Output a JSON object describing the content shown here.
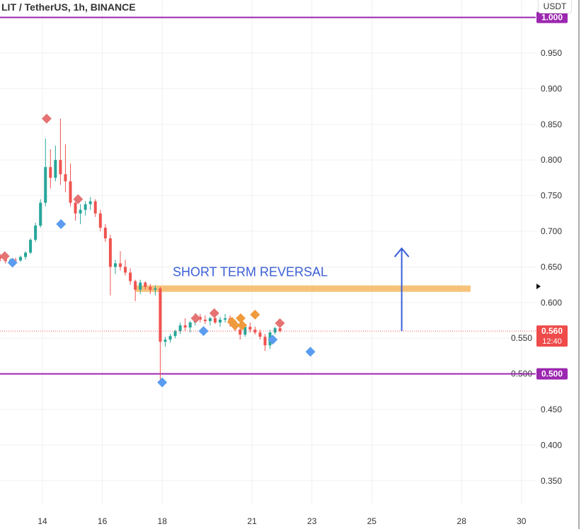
{
  "header": {
    "title": "LIT / TetherUS, 1h, BINANCE",
    "currency": "USDT"
  },
  "chart_data": {
    "type": "candlestick",
    "title": "LIT / TetherUS, 1h, BINANCE",
    "ylim": [
      0.31,
      1.01
    ],
    "xlim": [
      12.58,
      30.9
    ],
    "y_ticks": [
      0.35,
      0.4,
      0.45,
      0.5,
      0.55,
      0.6,
      0.65,
      0.7,
      0.75,
      0.8,
      0.85,
      0.9,
      0.95
    ],
    "y_tick_labels": [
      "0.350",
      "0.400",
      "0.450",
      "0.500",
      "0.550",
      "0.600",
      "0.650",
      "0.700",
      "0.750",
      "0.800",
      "0.850",
      "0.900",
      "0.950"
    ],
    "x_ticks": [
      14,
      16,
      18,
      21,
      23,
      25,
      28,
      30
    ],
    "x_tick_labels": [
      "14",
      "16",
      "18",
      "21",
      "23",
      "25",
      "28",
      "30"
    ],
    "grid": true,
    "candle_start_day": 12.6,
    "candle_step_days": 0.1667,
    "colors": {
      "up": "#26a69a",
      "down": "#ef5350",
      "purple": "#9c27b0",
      "band": "#f6c27a",
      "arrow": "#3a5fd6",
      "sell": "#e57373",
      "buy": "#5b9cf0",
      "orange": "#f09a3e"
    },
    "candles": [
      [
        0.665,
        0.668,
        0.658,
        0.662
      ],
      [
        0.662,
        0.665,
        0.655,
        0.658
      ],
      [
        0.658,
        0.662,
        0.655,
        0.66
      ],
      [
        0.66,
        0.663,
        0.656,
        0.659
      ],
      [
        0.659,
        0.666,
        0.657,
        0.664
      ],
      [
        0.664,
        0.672,
        0.66,
        0.67
      ],
      [
        0.67,
        0.69,
        0.668,
        0.688
      ],
      [
        0.688,
        0.712,
        0.685,
        0.708
      ],
      [
        0.708,
        0.745,
        0.705,
        0.74
      ],
      [
        0.74,
        0.83,
        0.735,
        0.79
      ],
      [
        0.79,
        0.815,
        0.76,
        0.775
      ],
      [
        0.775,
        0.82,
        0.77,
        0.8
      ],
      [
        0.8,
        0.858,
        0.765,
        0.78
      ],
      [
        0.78,
        0.822,
        0.755,
        0.77
      ],
      [
        0.77,
        0.795,
        0.735,
        0.74
      ],
      [
        0.74,
        0.748,
        0.715,
        0.725
      ],
      [
        0.725,
        0.738,
        0.71,
        0.73
      ],
      [
        0.73,
        0.742,
        0.722,
        0.738
      ],
      [
        0.738,
        0.748,
        0.73,
        0.742
      ],
      [
        0.742,
        0.745,
        0.72,
        0.725
      ],
      [
        0.725,
        0.73,
        0.7,
        0.705
      ],
      [
        0.705,
        0.71,
        0.685,
        0.69
      ],
      [
        0.69,
        0.695,
        0.61,
        0.65
      ],
      [
        0.65,
        0.66,
        0.64,
        0.655
      ],
      [
        0.655,
        0.672,
        0.645,
        0.65
      ],
      [
        0.65,
        0.66,
        0.638,
        0.642
      ],
      [
        0.642,
        0.648,
        0.625,
        0.63
      ],
      [
        0.63,
        0.632,
        0.602,
        0.618
      ],
      [
        0.618,
        0.632,
        0.612,
        0.628
      ],
      [
        0.628,
        0.63,
        0.618,
        0.622
      ],
      [
        0.622,
        0.626,
        0.612,
        0.618
      ],
      [
        0.618,
        0.624,
        0.61,
        0.62
      ],
      [
        0.62,
        0.622,
        0.488,
        0.545
      ],
      [
        0.545,
        0.552,
        0.538,
        0.548
      ],
      [
        0.548,
        0.556,
        0.544,
        0.553
      ],
      [
        0.553,
        0.562,
        0.55,
        0.56
      ],
      [
        0.56,
        0.572,
        0.556,
        0.568
      ],
      [
        0.568,
        0.578,
        0.56,
        0.565
      ],
      [
        0.565,
        0.574,
        0.558,
        0.572
      ],
      [
        0.572,
        0.585,
        0.568,
        0.58
      ],
      [
        0.58,
        0.584,
        0.572,
        0.576
      ],
      [
        0.576,
        0.582,
        0.57,
        0.574
      ],
      [
        0.574,
        0.58,
        0.568,
        0.578
      ],
      [
        0.578,
        0.583,
        0.57,
        0.572
      ],
      [
        0.572,
        0.58,
        0.566,
        0.576
      ],
      [
        0.576,
        0.584,
        0.572,
        0.578
      ],
      [
        0.578,
        0.582,
        0.566,
        0.57
      ],
      [
        0.57,
        0.575,
        0.56,
        0.562
      ],
      [
        0.562,
        0.568,
        0.548,
        0.555
      ],
      [
        0.555,
        0.57,
        0.552,
        0.566
      ],
      [
        0.566,
        0.572,
        0.558,
        0.562
      ],
      [
        0.562,
        0.566,
        0.555,
        0.558
      ],
      [
        0.558,
        0.562,
        0.548,
        0.552
      ],
      [
        0.552,
        0.556,
        0.532,
        0.54
      ],
      [
        0.54,
        0.562,
        0.535,
        0.558
      ],
      [
        0.558,
        0.566,
        0.555,
        0.564
      ],
      [
        0.564,
        0.568,
        0.558,
        0.56
      ]
    ],
    "levels": [
      {
        "price": 1.0,
        "label": "1.000"
      },
      {
        "price": 0.5,
        "label": "0.500"
      }
    ],
    "current_price": {
      "price": 0.56,
      "label": "0.560",
      "countdown": "12:40"
    },
    "zone": {
      "from_day": 17.1,
      "to_day": 28.3,
      "low": 0.615,
      "high": 0.624
    },
    "arrow": {
      "day": 26.0,
      "from": 0.56,
      "to": 0.676
    },
    "annotation": {
      "text": "SHORT TERM REVERSAL",
      "day": 18.35,
      "price": 0.637
    },
    "sell_signals": [
      [
        12.74,
        0.665
      ],
      [
        14.14,
        0.858
      ],
      [
        15.19,
        0.745
      ],
      [
        19.12,
        0.578
      ],
      [
        19.74,
        0.585
      ],
      [
        21.93,
        0.571
      ]
    ],
    "buy_signals": [
      [
        13.0,
        0.656
      ],
      [
        14.62,
        0.71
      ],
      [
        18.0,
        0.488
      ],
      [
        19.38,
        0.56
      ],
      [
        21.69,
        0.548
      ],
      [
        22.95,
        0.531
      ]
    ],
    "orange_signals": [
      [
        20.33,
        0.573
      ],
      [
        20.43,
        0.568
      ],
      [
        20.62,
        0.578
      ],
      [
        20.67,
        0.568
      ],
      [
        21.1,
        0.583
      ]
    ]
  }
}
